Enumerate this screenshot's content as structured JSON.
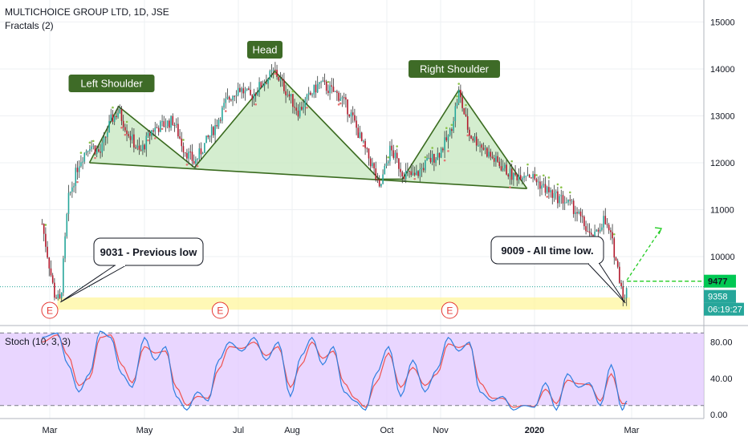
{
  "header": {
    "symbol": "MULTICHOICE GROUP LTD, 1D, JSE",
    "indicator": "Fractals (2)",
    "stoch_label": "Stoch (10, 3, 3)"
  },
  "colors": {
    "pattern_fill": "#c9e8c3",
    "pattern_stroke": "#3a6b1f",
    "label_bg": "#3e6b27",
    "support_zone": "#fff59d",
    "up_candle": "#26a69a",
    "down_candle": "#b2182b",
    "stoch_k": "#2f7fe0",
    "stoch_d": "#ef5350",
    "stoch_bg": "#e1c8ff",
    "price_tag_green": "#00c853",
    "price_tag_teal": "#26a69a",
    "projection": "#22cc22",
    "earnings_marker": "#e53935"
  },
  "chart_data": [
    {
      "type": "line",
      "title": "MULTICHOICE GROUP LTD, 1D, JSE",
      "x_ticks": [
        "Mar",
        "May",
        "Jul",
        "Aug",
        "Oct",
        "Nov",
        "2020",
        "Mar"
      ],
      "y_ticks": [
        10000,
        11000,
        12000,
        13000,
        14000,
        15000
      ],
      "ylim": [
        8600,
        15400
      ],
      "price_path": [
        [
          "2019-02-27",
          10700
        ],
        [
          "2019-03-04",
          9200
        ],
        [
          "2019-03-08",
          9031
        ],
        [
          "2019-03-13",
          11200
        ],
        [
          "2019-03-20",
          12000
        ],
        [
          "2019-03-27",
          12400
        ],
        [
          "2019-04-03",
          12200
        ],
        [
          "2019-04-10",
          12900
        ],
        [
          "2019-04-15",
          13100
        ],
        [
          "2019-04-22",
          12600
        ],
        [
          "2019-04-29",
          12200
        ],
        [
          "2019-05-06",
          12700
        ],
        [
          "2019-05-13",
          12800
        ],
        [
          "2019-05-20",
          12900
        ],
        [
          "2019-05-27",
          12300
        ],
        [
          "2019-06-03",
          12000
        ],
        [
          "2019-06-10",
          12400
        ],
        [
          "2019-06-17",
          12800
        ],
        [
          "2019-06-24",
          13300
        ],
        [
          "2019-07-01",
          13600
        ],
        [
          "2019-07-08",
          13400
        ],
        [
          "2019-07-15",
          13700
        ],
        [
          "2019-07-22",
          13950
        ],
        [
          "2019-07-29",
          13500
        ],
        [
          "2019-08-05",
          13100
        ],
        [
          "2019-08-12",
          13400
        ],
        [
          "2019-08-19",
          13700
        ],
        [
          "2019-08-26",
          13550
        ],
        [
          "2019-09-02",
          13400
        ],
        [
          "2019-09-09",
          13000
        ],
        [
          "2019-09-16",
          12400
        ],
        [
          "2019-09-23",
          11900
        ],
        [
          "2019-09-27",
          11400
        ],
        [
          "2019-10-03",
          12300
        ],
        [
          "2019-10-10",
          11800
        ],
        [
          "2019-10-17",
          11700
        ],
        [
          "2019-10-24",
          12000
        ],
        [
          "2019-10-31",
          12200
        ],
        [
          "2019-11-07",
          12600
        ],
        [
          "2019-11-13",
          13500
        ],
        [
          "2019-11-20",
          12600
        ],
        [
          "2019-11-27",
          12400
        ],
        [
          "2019-12-04",
          12100
        ],
        [
          "2019-12-11",
          11900
        ],
        [
          "2019-12-18",
          11700
        ],
        [
          "2019-12-27",
          11800
        ],
        [
          "2020-01-06",
          11500
        ],
        [
          "2020-01-13",
          11300
        ],
        [
          "2020-01-20",
          11200
        ],
        [
          "2020-01-27",
          11000
        ],
        [
          "2020-02-03",
          10600
        ],
        [
          "2020-02-07",
          10300
        ],
        [
          "2020-02-14",
          10800
        ],
        [
          "2020-02-19",
          10400
        ],
        [
          "2020-02-24",
          9600
        ],
        [
          "2020-02-28",
          9009
        ],
        [
          "2020-02-29",
          9358
        ]
      ],
      "pattern_points": [
        [
          "2019-03-27",
          12000
        ],
        [
          "2019-04-15",
          13200
        ],
        [
          "2019-06-03",
          11900
        ],
        [
          "2019-07-22",
          13950
        ],
        [
          "2019-09-27",
          11650
        ],
        [
          "2019-10-10",
          11650
        ],
        [
          "2019-11-13",
          13550
        ],
        [
          "2019-12-27",
          11450
        ]
      ],
      "neckline": [
        [
          "2019-03-27",
          12000
        ],
        [
          "2019-12-27",
          11450
        ]
      ],
      "annotations": [
        {
          "text": "Left Shoulder"
        },
        {
          "text": "Head"
        },
        {
          "text": "Right Shoulder"
        },
        {
          "text": "9031 - Previous low",
          "x": "2019-03-08",
          "y": 9031
        },
        {
          "text": "9009 - All time low.",
          "x": "2020-02-28",
          "y": 9009
        }
      ],
      "support_zone": [
        8870,
        9130
      ],
      "projection": [
        [
          "2020-02-29",
          9500
        ],
        [
          "2020-03-20",
          10600
        ]
      ],
      "dashed_level": 9477,
      "last_price_line": 9358,
      "price_tags": [
        {
          "text": "9477",
          "value": 9477
        },
        {
          "text": "9358",
          "value": 9358
        },
        {
          "text": "06:19:27",
          "value": 9000
        }
      ],
      "earnings_markers": [
        {
          "text": "E",
          "x": "2019-03-01"
        },
        {
          "text": "E",
          "x": "2019-06-20"
        },
        {
          "text": "E",
          "x": "2019-11-07"
        }
      ]
    },
    {
      "type": "line",
      "title": "Stoch (10, 3, 3)",
      "y_ticks": [
        0,
        40,
        80
      ],
      "ylim": [
        0,
        100
      ],
      "bands": [
        10,
        90
      ],
      "series": [
        {
          "values": [
            [
              "2019-02-27",
              85
            ],
            [
              "2019-03-06",
              90
            ],
            [
              "2019-03-13",
              55
            ],
            [
              "2019-03-20",
              25
            ],
            [
              "2019-03-27",
              45
            ],
            [
              "2019-04-03",
              92
            ],
            [
              "2019-04-10",
              85
            ],
            [
              "2019-04-17",
              45
            ],
            [
              "2019-04-24",
              30
            ],
            [
              "2019-05-01",
              85
            ],
            [
              "2019-05-08",
              60
            ],
            [
              "2019-05-15",
              75
            ],
            [
              "2019-05-22",
              20
            ],
            [
              "2019-05-29",
              5
            ],
            [
              "2019-06-05",
              25
            ],
            [
              "2019-06-12",
              15
            ],
            [
              "2019-06-19",
              60
            ],
            [
              "2019-06-26",
              80
            ],
            [
              "2019-07-03",
              70
            ],
            [
              "2019-07-10",
              85
            ],
            [
              "2019-07-17",
              60
            ],
            [
              "2019-07-24",
              80
            ],
            [
              "2019-07-31",
              20
            ],
            [
              "2019-08-07",
              65
            ],
            [
              "2019-08-14",
              85
            ],
            [
              "2019-08-21",
              55
            ],
            [
              "2019-08-28",
              75
            ],
            [
              "2019-09-04",
              25
            ],
            [
              "2019-09-11",
              15
            ],
            [
              "2019-09-18",
              5
            ],
            [
              "2019-09-25",
              45
            ],
            [
              "2019-10-02",
              75
            ],
            [
              "2019-10-09",
              20
            ],
            [
              "2019-10-16",
              60
            ],
            [
              "2019-10-23",
              25
            ],
            [
              "2019-10-30",
              50
            ],
            [
              "2019-11-06",
              85
            ],
            [
              "2019-11-13",
              70
            ],
            [
              "2019-11-20",
              80
            ],
            [
              "2019-11-27",
              25
            ],
            [
              "2019-12-04",
              15
            ],
            [
              "2019-12-11",
              20
            ],
            [
              "2019-12-18",
              5
            ],
            [
              "2019-12-25",
              10
            ],
            [
              "2020-01-01",
              8
            ],
            [
              "2020-01-08",
              35
            ],
            [
              "2020-01-15",
              5
            ],
            [
              "2020-01-22",
              45
            ],
            [
              "2020-01-29",
              30
            ],
            [
              "2020-02-05",
              35
            ],
            [
              "2020-02-12",
              10
            ],
            [
              "2020-02-19",
              55
            ],
            [
              "2020-02-26",
              5
            ],
            [
              "2020-02-29",
              15
            ]
          ]
        },
        {
          "values": [
            [
              "2019-02-27",
              80
            ],
            [
              "2019-03-06",
              88
            ],
            [
              "2019-03-13",
              65
            ],
            [
              "2019-03-20",
              32
            ],
            [
              "2019-03-27",
              40
            ],
            [
              "2019-04-03",
              85
            ],
            [
              "2019-04-10",
              88
            ],
            [
              "2019-04-17",
              55
            ],
            [
              "2019-04-24",
              35
            ],
            [
              "2019-05-01",
              75
            ],
            [
              "2019-05-08",
              68
            ],
            [
              "2019-05-15",
              70
            ],
            [
              "2019-05-22",
              30
            ],
            [
              "2019-05-29",
              10
            ],
            [
              "2019-06-05",
              20
            ],
            [
              "2019-06-12",
              18
            ],
            [
              "2019-06-19",
              50
            ],
            [
              "2019-06-26",
              75
            ],
            [
              "2019-07-03",
              73
            ],
            [
              "2019-07-10",
              80
            ],
            [
              "2019-07-17",
              65
            ],
            [
              "2019-07-24",
              75
            ],
            [
              "2019-07-31",
              30
            ],
            [
              "2019-08-07",
              55
            ],
            [
              "2019-08-14",
              80
            ],
            [
              "2019-08-21",
              62
            ],
            [
              "2019-08-28",
              70
            ],
            [
              "2019-09-04",
              35
            ],
            [
              "2019-09-11",
              18
            ],
            [
              "2019-09-18",
              8
            ],
            [
              "2019-09-25",
              35
            ],
            [
              "2019-10-02",
              68
            ],
            [
              "2019-10-09",
              30
            ],
            [
              "2019-10-16",
              52
            ],
            [
              "2019-10-23",
              32
            ],
            [
              "2019-10-30",
              45
            ],
            [
              "2019-11-06",
              78
            ],
            [
              "2019-11-13",
              74
            ],
            [
              "2019-11-20",
              78
            ],
            [
              "2019-11-27",
              35
            ],
            [
              "2019-12-04",
              18
            ],
            [
              "2019-12-11",
              18
            ],
            [
              "2019-12-18",
              8
            ],
            [
              "2019-12-25",
              10
            ],
            [
              "2020-01-01",
              9
            ],
            [
              "2020-01-08",
              28
            ],
            [
              "2020-01-15",
              12
            ],
            [
              "2020-01-22",
              38
            ],
            [
              "2020-01-29",
              34
            ],
            [
              "2020-02-05",
              33
            ],
            [
              "2020-02-12",
              15
            ],
            [
              "2020-02-19",
              45
            ],
            [
              "2020-02-26",
              12
            ],
            [
              "2020-02-29",
              12
            ]
          ]
        }
      ]
    }
  ]
}
